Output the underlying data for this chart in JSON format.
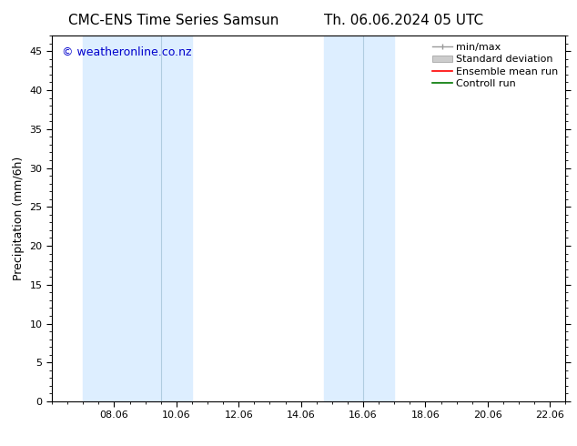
{
  "title_left": "CMC-ENS Time Series Samsun",
  "title_right": "Th. 06.06.2024 05 UTC",
  "ylabel": "Precipitation (mm/6h)",
  "watermark": "© weatheronline.co.nz",
  "xlim": [
    6.0,
    22.5
  ],
  "ylim": [
    0,
    47
  ],
  "yticks": [
    0,
    5,
    10,
    15,
    20,
    25,
    30,
    35,
    40,
    45
  ],
  "xtick_labels": [
    "08.06",
    "10.06",
    "12.06",
    "14.06",
    "16.06",
    "18.06",
    "20.06",
    "22.06"
  ],
  "xtick_positions": [
    8.0,
    10.0,
    12.0,
    14.0,
    16.0,
    18.0,
    20.0,
    22.0
  ],
  "shaded_regions": [
    [
      7.0,
      9.5
    ],
    [
      9.5,
      10.5
    ],
    [
      14.75,
      16.0
    ],
    [
      16.0,
      17.0
    ]
  ],
  "shade_colors": [
    "#ddeeff",
    "#ddeeff",
    "#ddeeff",
    "#ddeeff"
  ],
  "shade_dividers": [
    9.5,
    16.0
  ],
  "background_color": "#ffffff",
  "plot_bg_color": "#ffffff",
  "title_fontsize": 11,
  "watermark_color": "#0000cc",
  "watermark_fontsize": 9,
  "tick_fontsize": 8,
  "ylabel_fontsize": 9,
  "legend_fontsize": 8
}
